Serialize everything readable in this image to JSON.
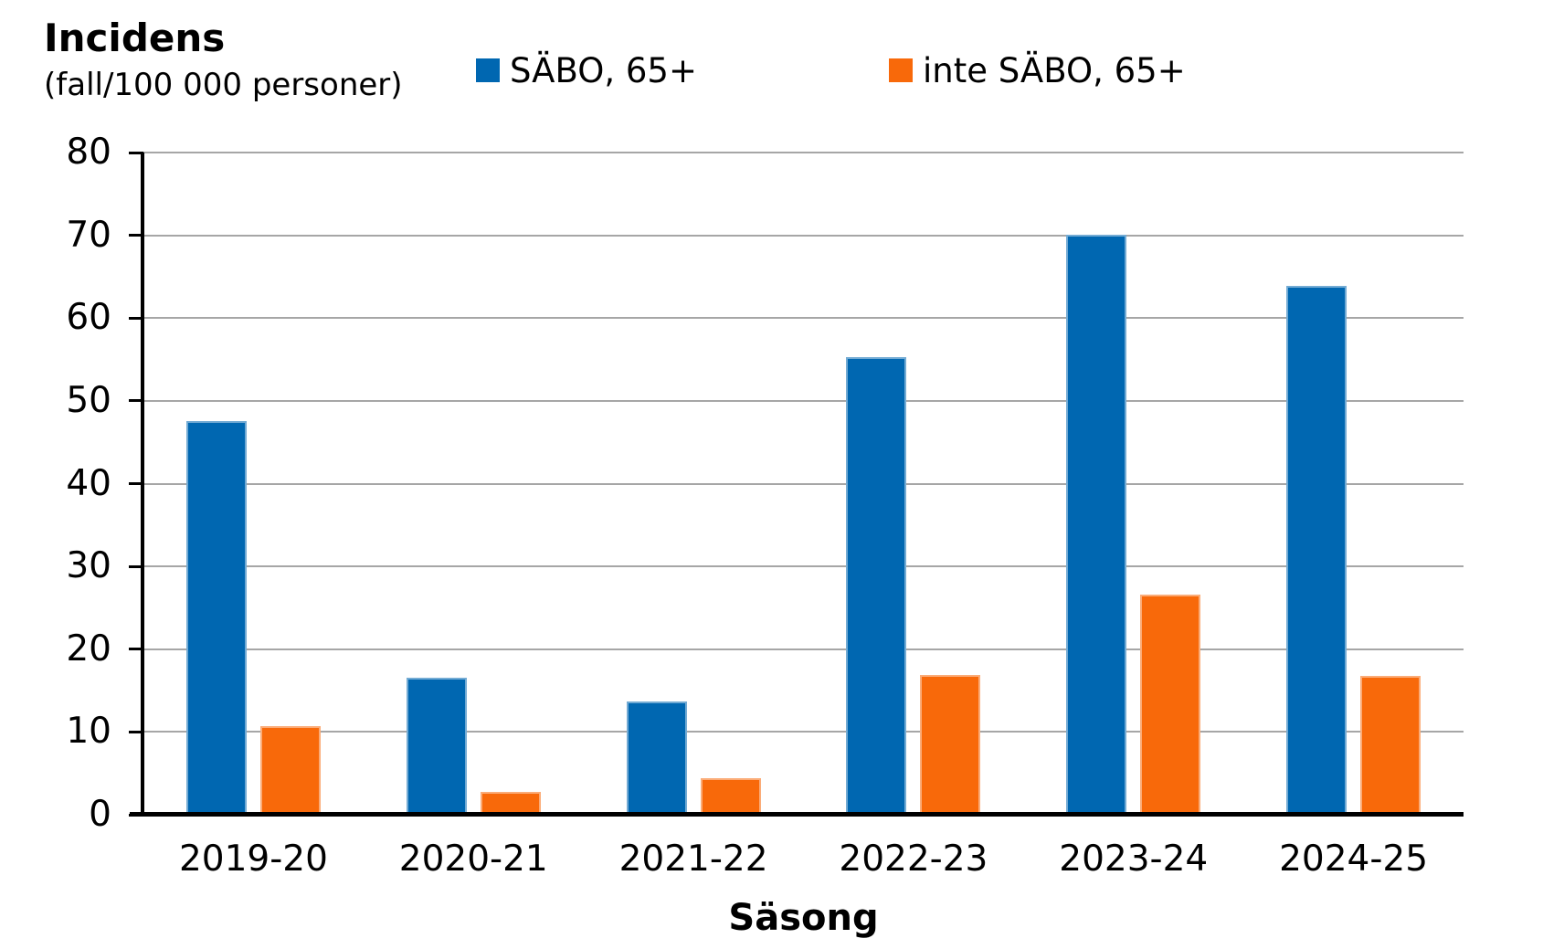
{
  "title": {
    "text": "Incidens",
    "subtitle": "(fall/100 000 personer)"
  },
  "legend": {
    "items": [
      {
        "label": "SÄBO, 65+",
        "color": "#0067B1"
      },
      {
        "label": "inte SÄBO, 65+",
        "color": "#F8690A"
      }
    ]
  },
  "y_axis": {
    "min": 0,
    "max": 80,
    "tick_interval": 10,
    "tick_labels": [
      "0",
      "10",
      "20",
      "30",
      "40",
      "50",
      "60",
      "70",
      "80"
    ]
  },
  "x_axis": {
    "title": "Säsong",
    "categories": [
      "2019-20",
      "2020-21",
      "2021-22",
      "2022-23",
      "2023-24",
      "2024-25"
    ]
  },
  "colors": {
    "sabo_blue": "#0067B1",
    "inte_sabo_orange": "#F8690A",
    "gridline": "#A6A6A6",
    "axis": "#000000",
    "text": "#000000",
    "background": "#FFFFFF"
  },
  "chart_data": {
    "type": "bar",
    "title": "Incidens",
    "subtitle": "(fall/100 000 personer)",
    "xlabel": "Säsong",
    "ylabel": "Incidens (fall/100 000 personer)",
    "ylim": [
      0,
      80
    ],
    "ytick_interval": 10,
    "grid": true,
    "legend_position": "top",
    "categories": [
      "2019-20",
      "2020-21",
      "2021-22",
      "2022-23",
      "2023-24",
      "2024-25"
    ],
    "series": [
      {
        "name": "SÄBO, 65+",
        "color": "#0067B1",
        "values": [
          47.6,
          16.5,
          13.7,
          55.3,
          70.1,
          63.9
        ]
      },
      {
        "name": "inte SÄBO, 65+",
        "color": "#F8690A",
        "values": [
          10.7,
          2.8,
          4.4,
          16.9,
          26.6,
          16.8
        ]
      }
    ]
  }
}
